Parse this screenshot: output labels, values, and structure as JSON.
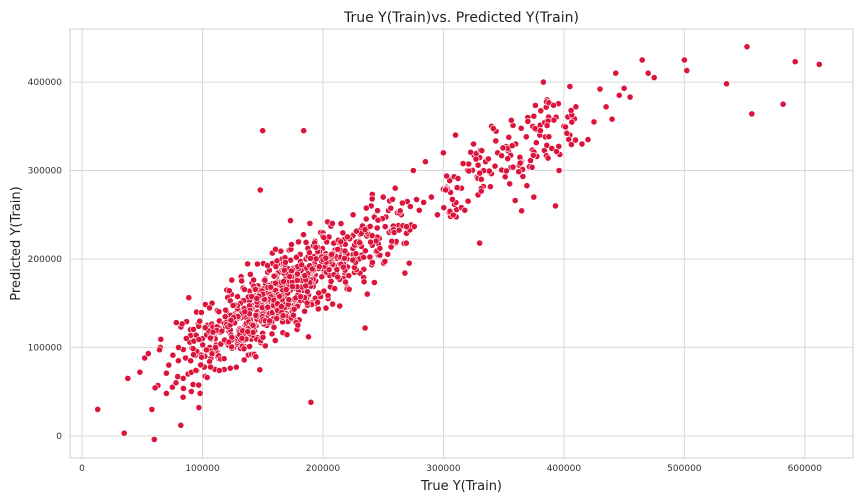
{
  "chart_data": {
    "type": "scatter",
    "title": "True Y(Train)vs. Predicted Y(Train)",
    "xlabel": "True Y(Train)",
    "ylabel": "Predicted Y(Train)",
    "xlim": [
      -10000,
      640000
    ],
    "ylim": [
      -25000,
      460000
    ],
    "x_ticks": [
      0,
      100000,
      200000,
      300000,
      400000,
      500000,
      600000
    ],
    "x_tick_labels": [
      "0",
      "100000",
      "200000",
      "300000",
      "400000",
      "500000",
      "600000"
    ],
    "y_ticks": [
      0,
      100000,
      200000,
      300000,
      400000
    ],
    "y_tick_labels": [
      "0",
      "100000",
      "200000",
      "300000",
      "400000"
    ],
    "grid": true,
    "point_color": "#dc143c",
    "point_edge_color": "#ffffff",
    "background": "#ffffff",
    "grid_color": "#d9d9d9",
    "points": [
      [
        13000,
        30000
      ],
      [
        35000,
        3000
      ],
      [
        38000,
        65000
      ],
      [
        48000,
        72000
      ],
      [
        52000,
        88000
      ],
      [
        55000,
        93000
      ],
      [
        58000,
        30000
      ],
      [
        60000,
        -4000
      ],
      [
        63000,
        57000
      ],
      [
        65000,
        100000
      ],
      [
        70000,
        48000
      ],
      [
        72000,
        80000
      ],
      [
        75000,
        55000
      ],
      [
        78000,
        60000
      ],
      [
        80000,
        85000
      ],
      [
        82000,
        12000
      ],
      [
        84000,
        65000
      ],
      [
        86000,
        88000
      ],
      [
        88000,
        70000
      ],
      [
        90000,
        120000
      ],
      [
        92000,
        98000
      ],
      [
        95000,
        140000
      ],
      [
        97000,
        32000
      ],
      [
        98000,
        48000
      ],
      [
        100000,
        110000
      ],
      [
        102000,
        90000
      ],
      [
        104000,
        125000
      ],
      [
        106000,
        100000
      ],
      [
        108000,
        150000
      ],
      [
        110000,
        115000
      ],
      [
        112000,
        95000
      ],
      [
        114000,
        130000
      ],
      [
        116000,
        105000
      ],
      [
        118000,
        75000
      ],
      [
        120000,
        140000
      ],
      [
        122000,
        118000
      ],
      [
        124000,
        160000
      ],
      [
        126000,
        100000
      ],
      [
        128000,
        135000
      ],
      [
        130000,
        120000
      ],
      [
        132000,
        180000
      ],
      [
        134000,
        110000
      ],
      [
        136000,
        145000
      ],
      [
        138000,
        155000
      ],
      [
        140000,
        125000
      ],
      [
        142000,
        170000
      ],
      [
        144000,
        135000
      ],
      [
        146000,
        160000
      ],
      [
        148000,
        278000
      ],
      [
        150000,
        345000
      ],
      [
        152000,
        140000
      ],
      [
        154000,
        185000
      ],
      [
        156000,
        150000
      ],
      [
        158000,
        195000
      ],
      [
        160000,
        165000
      ],
      [
        162000,
        175000
      ],
      [
        164000,
        145000
      ],
      [
        166000,
        200000
      ],
      [
        168000,
        160000
      ],
      [
        170000,
        180000
      ],
      [
        172000,
        210000
      ],
      [
        174000,
        170000
      ],
      [
        176000,
        190000
      ],
      [
        178000,
        155000
      ],
      [
        180000,
        220000
      ],
      [
        182000,
        185000
      ],
      [
        184000,
        345000
      ],
      [
        186000,
        200000
      ],
      [
        188000,
        112000
      ],
      [
        190000,
        38000
      ],
      [
        192000,
        215000
      ],
      [
        194000,
        175000
      ],
      [
        196000,
        205000
      ],
      [
        198000,
        230000
      ],
      [
        200000,
        195000
      ],
      [
        205000,
        225000
      ],
      [
        210000,
        210000
      ],
      [
        215000,
        240000
      ],
      [
        220000,
        200000
      ],
      [
        225000,
        250000
      ],
      [
        230000,
        220000
      ],
      [
        235000,
        122000
      ],
      [
        240000,
        260000
      ],
      [
        245000,
        235000
      ],
      [
        250000,
        270000
      ],
      [
        255000,
        230000
      ],
      [
        260000,
        280000
      ],
      [
        265000,
        250000
      ],
      [
        268000,
        184000
      ],
      [
        270000,
        265000
      ],
      [
        275000,
        300000
      ],
      [
        280000,
        255000
      ],
      [
        285000,
        310000
      ],
      [
        290000,
        270000
      ],
      [
        295000,
        250000
      ],
      [
        300000,
        320000
      ],
      [
        305000,
        290000
      ],
      [
        310000,
        340000
      ],
      [
        315000,
        280000
      ],
      [
        320000,
        300000
      ],
      [
        325000,
        330000
      ],
      [
        330000,
        218000
      ],
      [
        335000,
        310000
      ],
      [
        340000,
        350000
      ],
      [
        345000,
        320000
      ],
      [
        350000,
        300000
      ],
      [
        355000,
        285000
      ],
      [
        360000,
        330000
      ],
      [
        365000,
        310000
      ],
      [
        370000,
        360000
      ],
      [
        375000,
        270000
      ],
      [
        380000,
        340000
      ],
      [
        383000,
        400000
      ],
      [
        386000,
        380000
      ],
      [
        390000,
        325000
      ],
      [
        393000,
        260000
      ],
      [
        396000,
        300000
      ],
      [
        400000,
        350000
      ],
      [
        405000,
        340000
      ],
      [
        410000,
        372000
      ],
      [
        415000,
        330000
      ],
      [
        420000,
        335000
      ],
      [
        425000,
        355000
      ],
      [
        430000,
        392000
      ],
      [
        435000,
        372000
      ],
      [
        440000,
        358000
      ],
      [
        443000,
        410000
      ],
      [
        446000,
        385000
      ],
      [
        450000,
        393000
      ],
      [
        455000,
        383000
      ],
      [
        465000,
        425000
      ],
      [
        470000,
        410000
      ],
      [
        475000,
        405000
      ],
      [
        500000,
        425000
      ],
      [
        502000,
        413000
      ],
      [
        535000,
        398000
      ],
      [
        552000,
        440000
      ],
      [
        556000,
        364000
      ],
      [
        582000,
        375000
      ],
      [
        592000,
        423000
      ],
      [
        612000,
        420000
      ]
    ]
  }
}
